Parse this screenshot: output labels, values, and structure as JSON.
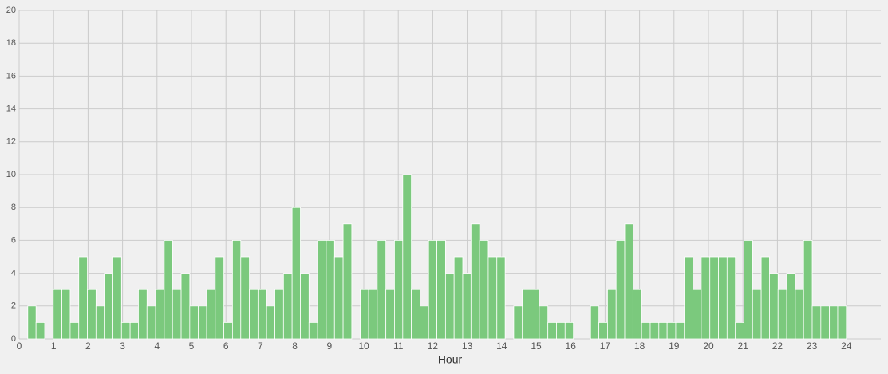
{
  "chart_data": {
    "type": "histogram",
    "xlabel": "Hour",
    "color": "#7bc97d",
    "bins": [
      0,
      0.25,
      0.49,
      0.74,
      0.99,
      1.24,
      1.48,
      1.73,
      1.98,
      2.23,
      2.47,
      2.72,
      2.97,
      3.22,
      3.46,
      3.71,
      3.96,
      4.21,
      4.45,
      4.7,
      4.95,
      5.2,
      5.44,
      5.69,
      5.94,
      6.19,
      6.43,
      6.68,
      6.93,
      7.18,
      7.42,
      7.67,
      7.92,
      8.16,
      8.41,
      8.66,
      8.91,
      9.15,
      9.4,
      9.65,
      9.9,
      10.14,
      10.39,
      10.64,
      10.89,
      11.13,
      11.38,
      11.63,
      11.88,
      12.12,
      12.37,
      12.62,
      12.87,
      13.11,
      13.36,
      13.61,
      13.86,
      14.1,
      14.35,
      14.6,
      14.85,
      15.09,
      15.34,
      15.59,
      15.84,
      16.08,
      16.33,
      16.58,
      16.82,
      17.07,
      17.32,
      17.57,
      17.81,
      18.06,
      18.31,
      18.56,
      18.8,
      19.05,
      19.3,
      19.55,
      19.79,
      20.04,
      20.29,
      20.54,
      20.78,
      21.03,
      21.28,
      21.53,
      21.77,
      22.02,
      22.27,
      22.52,
      22.76,
      23.01,
      23.26,
      23.51,
      23.75,
      24
    ],
    "values": [
      0,
      2,
      1,
      0,
      3,
      3,
      1,
      5,
      3,
      2,
      4,
      5,
      1,
      1,
      3,
      2,
      3,
      6,
      3,
      4,
      2,
      2,
      3,
      5,
      1,
      6,
      5,
      3,
      3,
      2,
      3,
      4,
      8,
      4,
      1,
      6,
      6,
      5,
      7,
      0,
      3,
      3,
      6,
      3,
      6,
      10,
      3,
      2,
      6,
      6,
      4,
      5,
      4,
      7,
      6,
      5,
      5,
      0,
      2,
      3,
      3,
      2,
      1,
      1,
      1,
      0,
      0,
      2,
      1,
      3,
      6,
      7,
      3,
      1,
      1,
      1,
      1,
      1,
      5,
      3,
      5,
      5,
      5,
      5,
      1,
      6,
      3,
      5,
      4,
      3,
      4,
      3,
      6,
      2,
      2,
      2,
      2
    ],
    "xlim": [
      0,
      25
    ],
    "xticks": [
      0,
      1,
      2,
      3,
      4,
      5,
      6,
      7,
      8,
      9,
      10,
      11,
      12,
      13,
      14,
      15,
      16,
      17,
      18,
      19,
      20,
      21,
      22,
      23,
      24
    ],
    "ylim": [
      0,
      20
    ],
    "yticks": [
      0,
      2,
      4,
      6,
      8,
      10,
      12,
      14,
      16,
      18,
      20
    ],
    "grid": true
  }
}
